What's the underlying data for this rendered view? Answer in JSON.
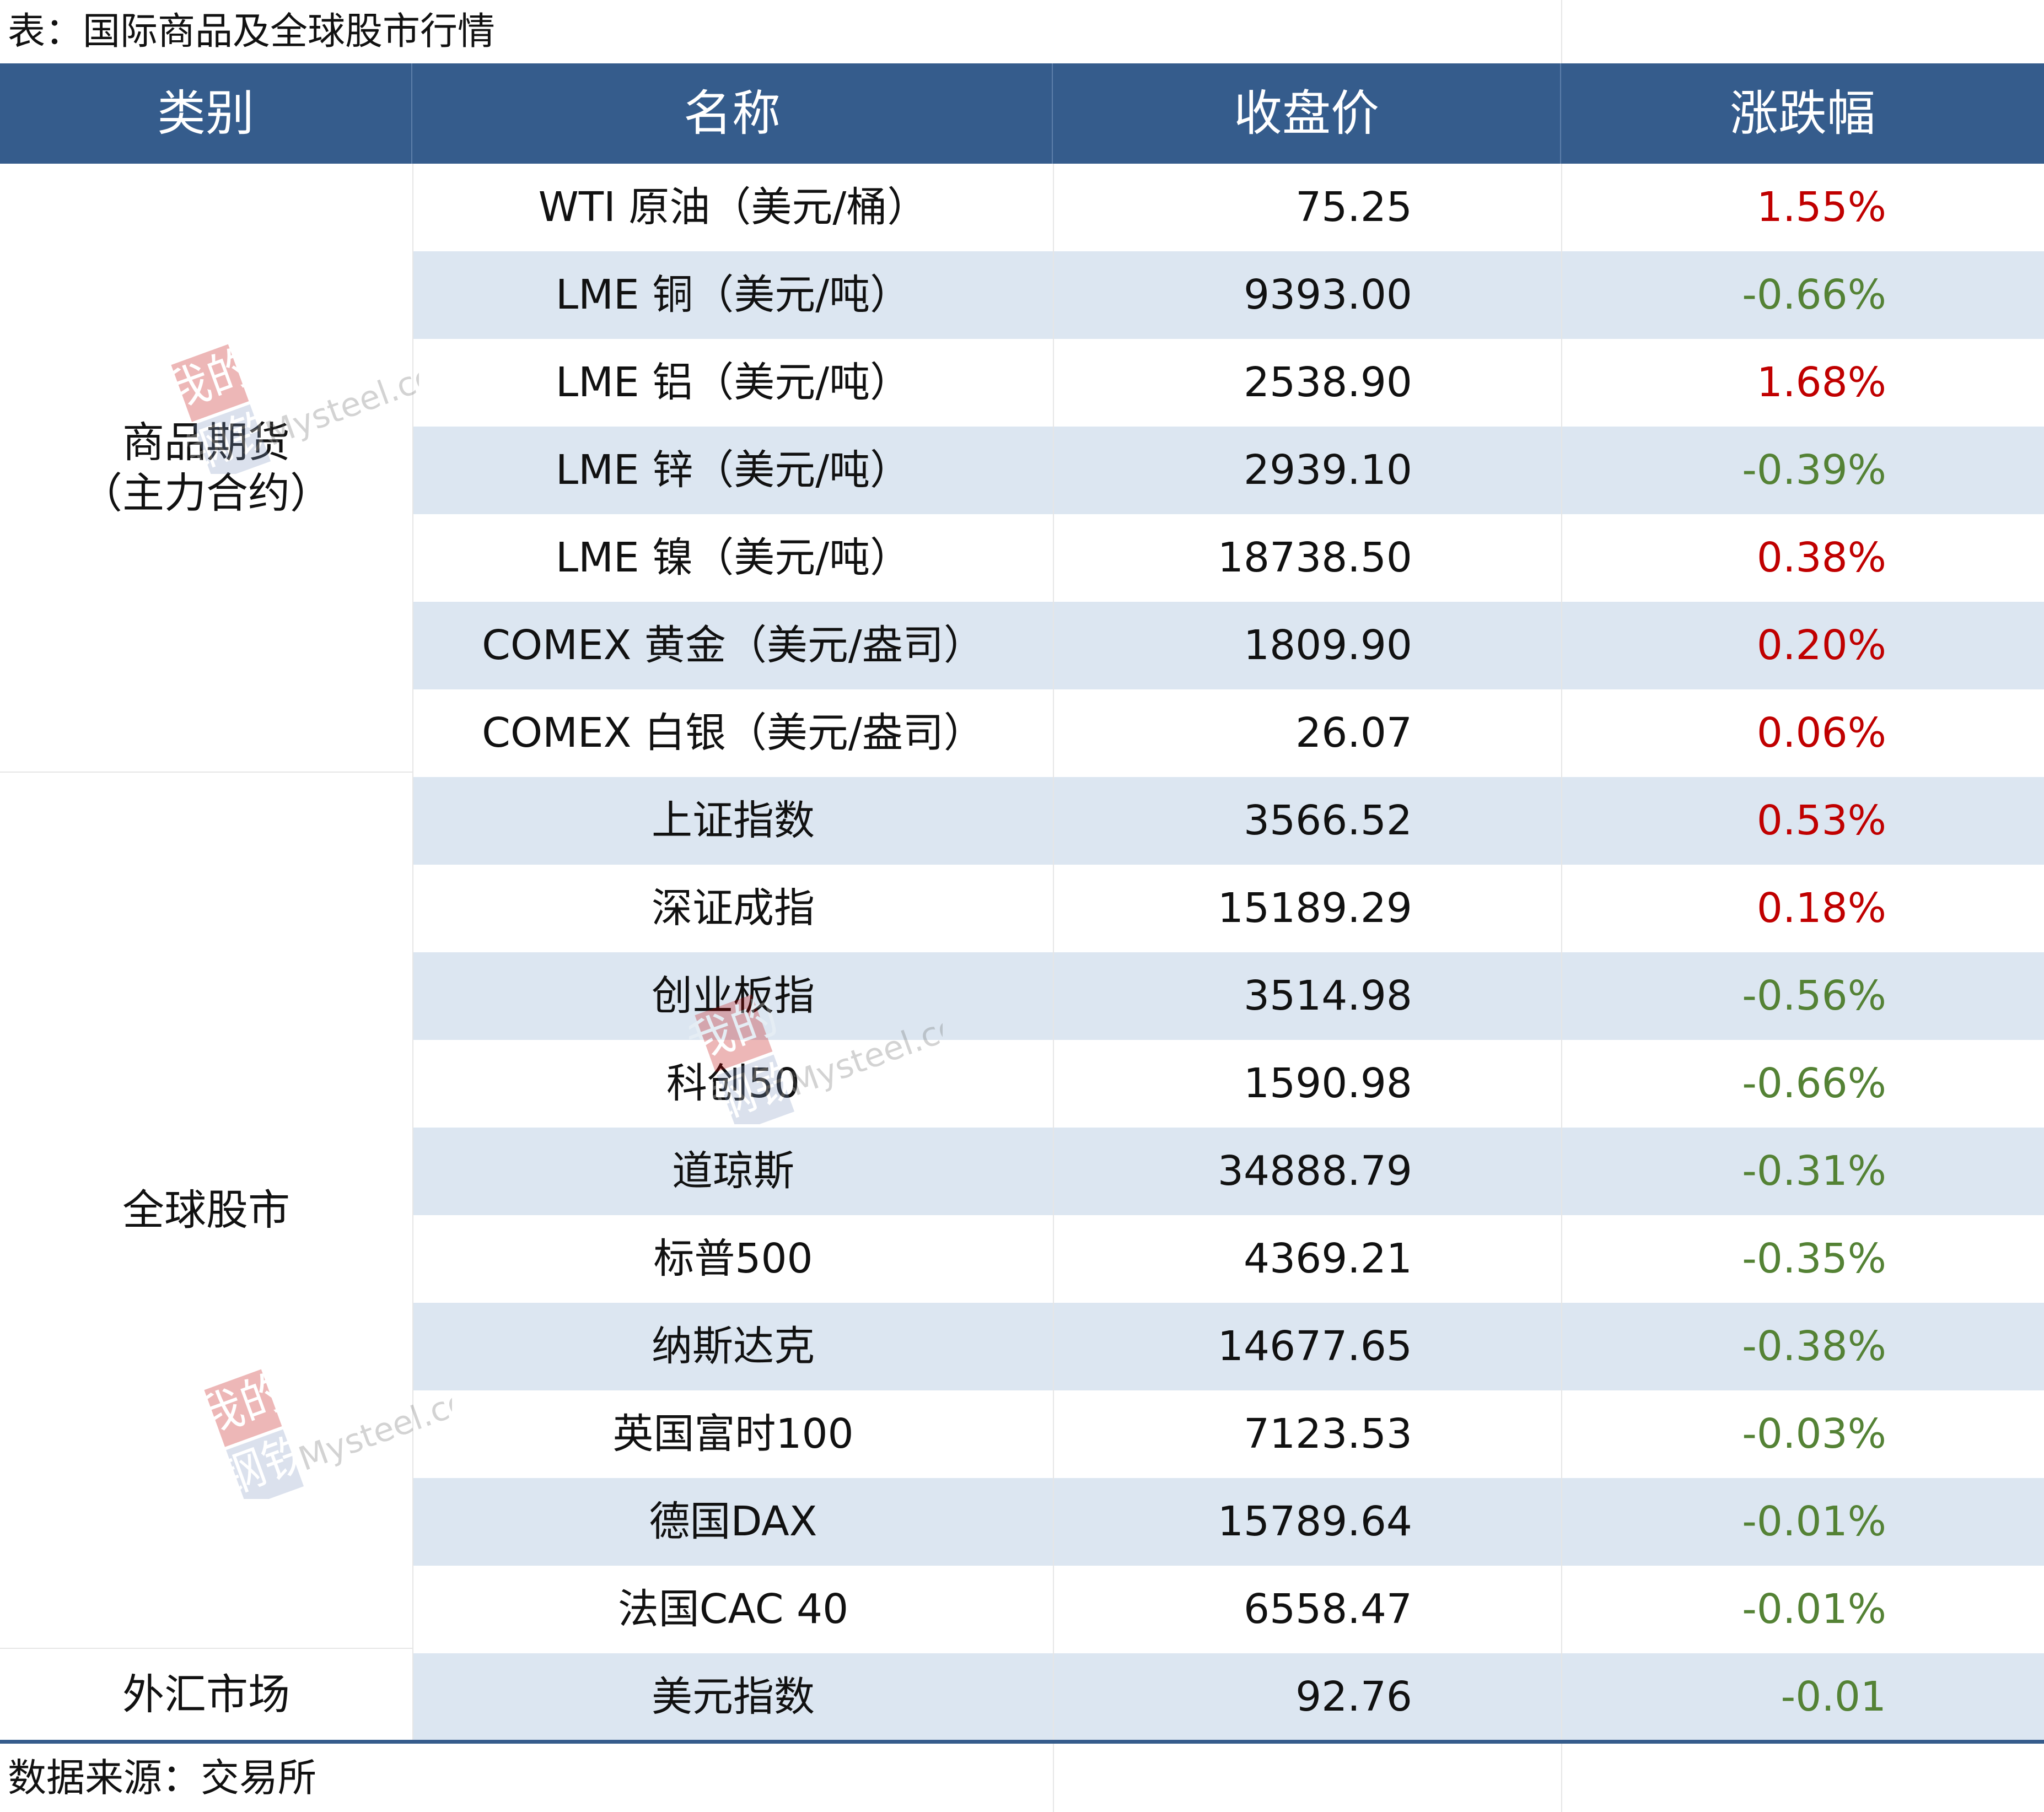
{
  "caption": "表：国际商品及全球股市行情",
  "headers": {
    "category": "类别",
    "name": "名称",
    "close": "收盘价",
    "change": "涨跌幅"
  },
  "groups": {
    "commodities": {
      "line1": "商品期货",
      "line2": "（主力合约）"
    },
    "stocks": {
      "line1": "全球股市"
    },
    "fx": {
      "line1": "外汇市场"
    }
  },
  "rows": [
    {
      "name": "WTI 原油（美元/桶）",
      "close": "75.25",
      "change": "1.55%",
      "direction": "up"
    },
    {
      "name": "LME 铜（美元/吨）",
      "close": "9393.00",
      "change": "-0.66%",
      "direction": "down"
    },
    {
      "name": "LME 铝（美元/吨）",
      "close": "2538.90",
      "change": "1.68%",
      "direction": "up"
    },
    {
      "name": "LME 锌（美元/吨）",
      "close": "2939.10",
      "change": "-0.39%",
      "direction": "down"
    },
    {
      "name": "LME 镍（美元/吨）",
      "close": "18738.50",
      "change": "0.38%",
      "direction": "up"
    },
    {
      "name": "COMEX 黄金（美元/盎司）",
      "close": "1809.90",
      "change": "0.20%",
      "direction": "up"
    },
    {
      "name": "COMEX 白银（美元/盎司）",
      "close": "26.07",
      "change": "0.06%",
      "direction": "up"
    },
    {
      "name": "上证指数",
      "close": "3566.52",
      "change": "0.53%",
      "direction": "up"
    },
    {
      "name": "深证成指",
      "close": "15189.29",
      "change": "0.18%",
      "direction": "up"
    },
    {
      "name": "创业板指",
      "close": "3514.98",
      "change": "-0.56%",
      "direction": "down"
    },
    {
      "name": "科创50",
      "close": "1590.98",
      "change": "-0.66%",
      "direction": "down"
    },
    {
      "name": "道琼斯",
      "close": "34888.79",
      "change": "-0.31%",
      "direction": "down"
    },
    {
      "name": "标普500",
      "close": "4369.21",
      "change": "-0.35%",
      "direction": "down"
    },
    {
      "name": "纳斯达克",
      "close": "14677.65",
      "change": "-0.38%",
      "direction": "down"
    },
    {
      "name": "英国富时100",
      "close": "7123.53",
      "change": "-0.03%",
      "direction": "down"
    },
    {
      "name": "德国DAX",
      "close": "15789.64",
      "change": "-0.01%",
      "direction": "down"
    },
    {
      "name": "法国CAC 40",
      "close": "6558.47",
      "change": "-0.01%",
      "direction": "down"
    },
    {
      "name": "美元指数",
      "close": "92.76",
      "change": "-0.01",
      "direction": "down"
    }
  ],
  "source": "数据来源：交易所",
  "watermark": {
    "line1": "我的",
    "line2": "钢铁",
    "brand": "Mysteel.com"
  },
  "colors": {
    "header_bg": "#355c8c",
    "row_shade": "#dce6f1",
    "up": "#c00000",
    "down": "#548235"
  }
}
